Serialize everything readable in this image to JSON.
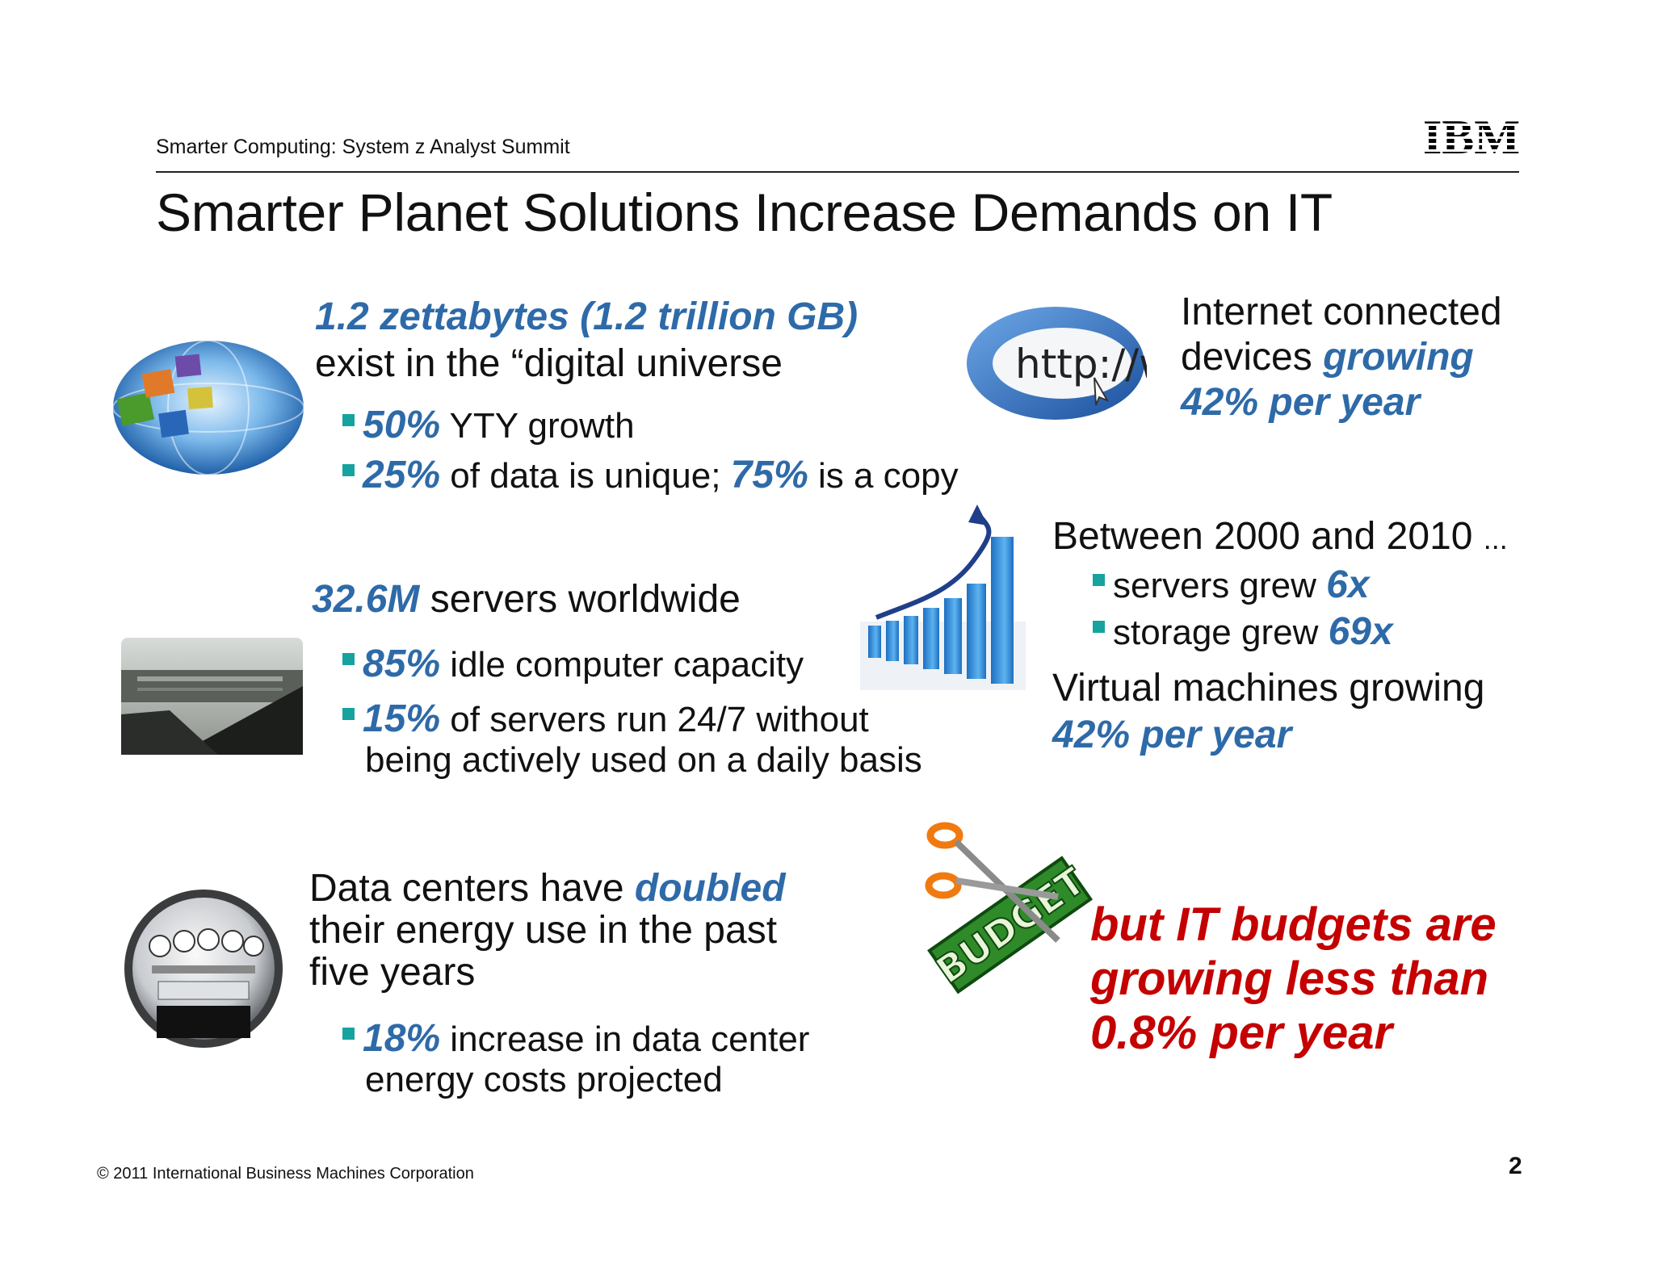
{
  "header": {
    "event": "Smarter Computing: System z Analyst Summit",
    "logo_text": "IBM"
  },
  "title": "Smarter Planet Solutions Increase Demands on IT",
  "data_block": {
    "headline_value": "1.2 zettabytes (1.2 trillion GB)",
    "headline_rest": "exist in the “digital universe",
    "bullets": [
      {
        "value": "50%",
        "text": " YTY growth"
      },
      {
        "value": "25%",
        "text": " of data is unique; ",
        "value2": "75%",
        "text2": " is a copy"
      }
    ]
  },
  "servers_block": {
    "headline_value": "32.6M",
    "headline_rest": " servers worldwide",
    "bullets": [
      {
        "value": "85%",
        "text": " idle computer capacity"
      },
      {
        "value": "15%",
        "text": " of servers run 24/7 without",
        "continuation": "being actively used on a daily basis"
      }
    ]
  },
  "energy_block": {
    "line1_text": "Data centers have ",
    "line1_value": "doubled",
    "line2": "their energy use in the past",
    "line3": "five years",
    "bullets": [
      {
        "value": "18%",
        "text": " increase in data center",
        "continuation": "energy costs projected"
      }
    ]
  },
  "internet_block": {
    "line1": "Internet connected",
    "line2_text": "devices ",
    "line2_value": "growing",
    "line3_value": "42% per year",
    "image_text": "http://www"
  },
  "growth_block": {
    "headline": "Between 2000 and 2010",
    "ellipsis": "...",
    "bullets": [
      {
        "text": "servers grew ",
        "value": "6x"
      },
      {
        "text": "storage grew ",
        "value": "69x"
      }
    ],
    "vm_line": "Virtual machines growing",
    "vm_value": "42% per year"
  },
  "budget_block": {
    "image_text": "BUDGET",
    "lines": [
      "but IT budgets are",
      "growing less than",
      "0.8% per year"
    ]
  },
  "footer": {
    "copyright": "© 2011 International Business Machines Corporation",
    "page_number": "2"
  },
  "colors": {
    "accent_blue": "#2e6aa8",
    "accent_red": "#c40000",
    "bullet_teal": "#16a3a0"
  }
}
